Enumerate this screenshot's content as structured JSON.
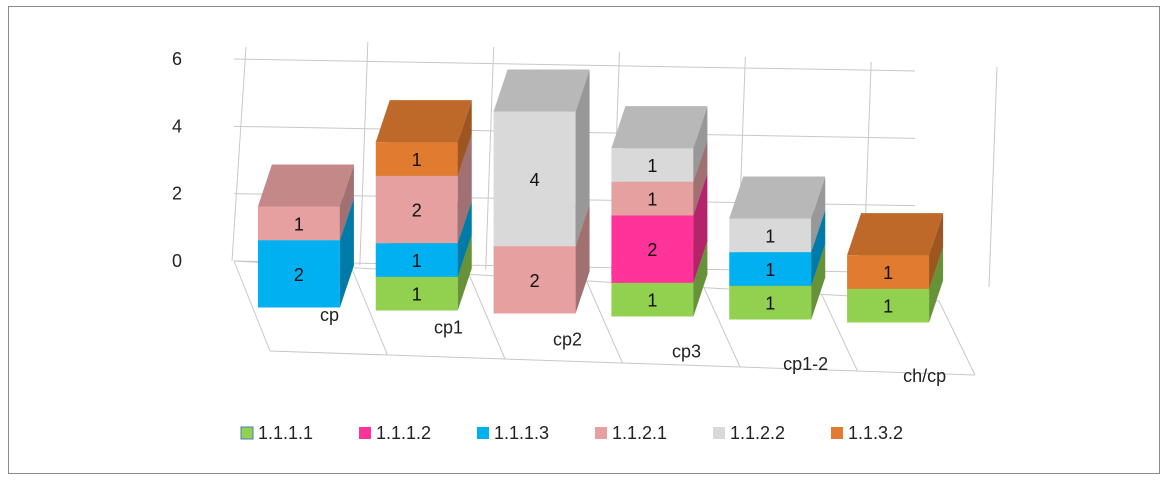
{
  "chart_data": {
    "type": "bar",
    "variant": "3d-stacked-column",
    "categories": [
      "cp",
      "cp1",
      "cp2",
      "cp3",
      "cp1-2",
      "ch/cp"
    ],
    "series": [
      {
        "name": "1.1.1.1",
        "color": "#92d050",
        "values": [
          0,
          1,
          0,
          1,
          1,
          1
        ]
      },
      {
        "name": "1.1.1.2",
        "color": "#ff3399",
        "values": [
          0,
          0,
          0,
          2,
          0,
          0
        ]
      },
      {
        "name": "1.1.1.3",
        "color": "#00b0f0",
        "values": [
          2,
          1,
          0,
          0,
          1,
          0
        ]
      },
      {
        "name": "1.1.2.1",
        "color": "#e6a0a0",
        "values": [
          1,
          2,
          2,
          1,
          0,
          0
        ]
      },
      {
        "name": "1.1.2.2",
        "color": "#d9d9d9",
        "values": [
          0,
          0,
          4,
          1,
          1,
          0
        ]
      },
      {
        "name": "1.1.3.2",
        "color": "#e07b30",
        "values": [
          0,
          1,
          0,
          0,
          0,
          1
        ]
      }
    ],
    "y_ticks": [
      "0",
      "2",
      "4",
      "6"
    ],
    "ylim": [
      0,
      6
    ],
    "grid": true,
    "legend": "bottom",
    "data_labels": true,
    "title": "",
    "xlabel": "",
    "ylabel": ""
  }
}
